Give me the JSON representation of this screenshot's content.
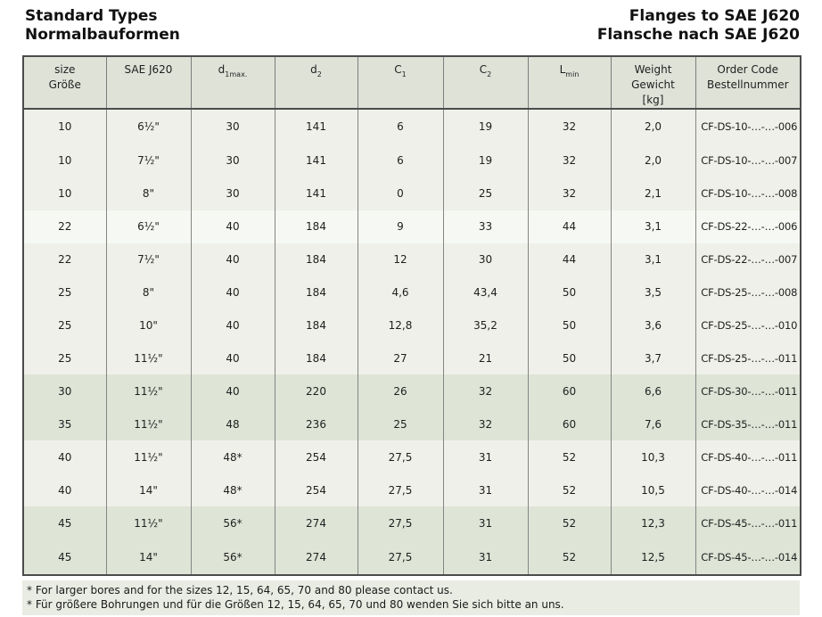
{
  "page": {
    "title_left_line1": "Standard Types",
    "title_left_line2": "Normalbauformen",
    "title_right_line1": "Flanges to SAE J620",
    "title_right_line2": "Flansche nach SAE J620"
  },
  "table": {
    "columns": [
      {
        "id": "size",
        "line1": "size",
        "line2": "Größe"
      },
      {
        "id": "sae",
        "line1": "SAE J620"
      },
      {
        "id": "d1max",
        "main": "d",
        "sub": "1max."
      },
      {
        "id": "d2",
        "main": "d",
        "sub": "2"
      },
      {
        "id": "c1",
        "main": "C",
        "sub": "1"
      },
      {
        "id": "c2",
        "main": "C",
        "sub": "2"
      },
      {
        "id": "lmin",
        "main": "L",
        "sub": "min"
      },
      {
        "id": "weight",
        "line1": "Weight",
        "line2": "Gewicht",
        "line3": "[kg]"
      },
      {
        "id": "order",
        "line1": "Order Code",
        "line2": "Bestellnummer"
      }
    ],
    "rows": [
      {
        "size": "10",
        "sae": "6½\"",
        "d1max": "30",
        "d2": "141",
        "c1": "6",
        "c2": "19",
        "lmin": "32",
        "weight": "2,0",
        "order": "CF-DS-10-…-…-006"
      },
      {
        "size": "10",
        "sae": "7½\"",
        "d1max": "30",
        "d2": "141",
        "c1": "6",
        "c2": "19",
        "lmin": "32",
        "weight": "2,0",
        "order": "CF-DS-10-…-…-007"
      },
      {
        "size": "10",
        "sae": "8\"",
        "d1max": "30",
        "d2": "141",
        "c1": "0",
        "c2": "25",
        "lmin": "32",
        "weight": "2,1",
        "order": "CF-DS-10-…-…-008"
      },
      {
        "size": "22",
        "sae": "6½\"",
        "d1max": "40",
        "d2": "184",
        "c1": "9",
        "c2": "33",
        "lmin": "44",
        "weight": "3,1",
        "order": "CF-DS-22-…-…-006"
      },
      {
        "size": "22",
        "sae": "7½\"",
        "d1max": "40",
        "d2": "184",
        "c1": "12",
        "c2": "30",
        "lmin": "44",
        "weight": "3,1",
        "order": "CF-DS-22-…-…-007"
      },
      {
        "size": "25",
        "sae": "8\"",
        "d1max": "40",
        "d2": "184",
        "c1": "4,6",
        "c2": "43,4",
        "lmin": "50",
        "weight": "3,5",
        "order": "CF-DS-25-…-…-008"
      },
      {
        "size": "25",
        "sae": "10\"",
        "d1max": "40",
        "d2": "184",
        "c1": "12,8",
        "c2": "35,2",
        "lmin": "50",
        "weight": "3,6",
        "order": "CF-DS-25-…-…-010"
      },
      {
        "size": "25",
        "sae": "11½\"",
        "d1max": "40",
        "d2": "184",
        "c1": "27",
        "c2": "21",
        "lmin": "50",
        "weight": "3,7",
        "order": "CF-DS-25-…-…-011"
      },
      {
        "size": "30",
        "sae": "11½\"",
        "d1max": "40",
        "d2": "220",
        "c1": "26",
        "c2": "32",
        "lmin": "60",
        "weight": "6,6",
        "order": "CF-DS-30-…-…-011"
      },
      {
        "size": "35",
        "sae": "11½\"",
        "d1max": "48",
        "d2": "236",
        "c1": "25",
        "c2": "32",
        "lmin": "60",
        "weight": "7,6",
        "order": "CF-DS-35-…-…-011"
      },
      {
        "size": "40",
        "sae": "11½\"",
        "d1max": "48*",
        "d2": "254",
        "c1": "27,5",
        "c2": "31",
        "lmin": "52",
        "weight": "10,3",
        "order": "CF-DS-40-…-…-011"
      },
      {
        "size": "40",
        "sae": "14\"",
        "d1max": "48*",
        "d2": "254",
        "c1": "27,5",
        "c2": "31",
        "lmin": "52",
        "weight": "10,5",
        "order": "CF-DS-40-…-…-014"
      },
      {
        "size": "45",
        "sae": "11½\"",
        "d1max": "56*",
        "d2": "274",
        "c1": "27,5",
        "c2": "31",
        "lmin": "52",
        "weight": "12,3",
        "order": "CF-DS-45-…-…-011"
      },
      {
        "size": "45",
        "sae": "14\"",
        "d1max": "56*",
        "d2": "274",
        "c1": "27,5",
        "c2": "31",
        "lmin": "52",
        "weight": "12,5",
        "order": "CF-DS-45-…-…-014"
      }
    ]
  },
  "footnotes": [
    "* For larger bores and for the sizes 12, 15, 64, 65, 70 and 80 please contact us.",
    "* Für größere Bohrungen und für die Größen 12, 15, 64, 65, 70 und 80 wenden Sie sich bitte an uns."
  ]
}
